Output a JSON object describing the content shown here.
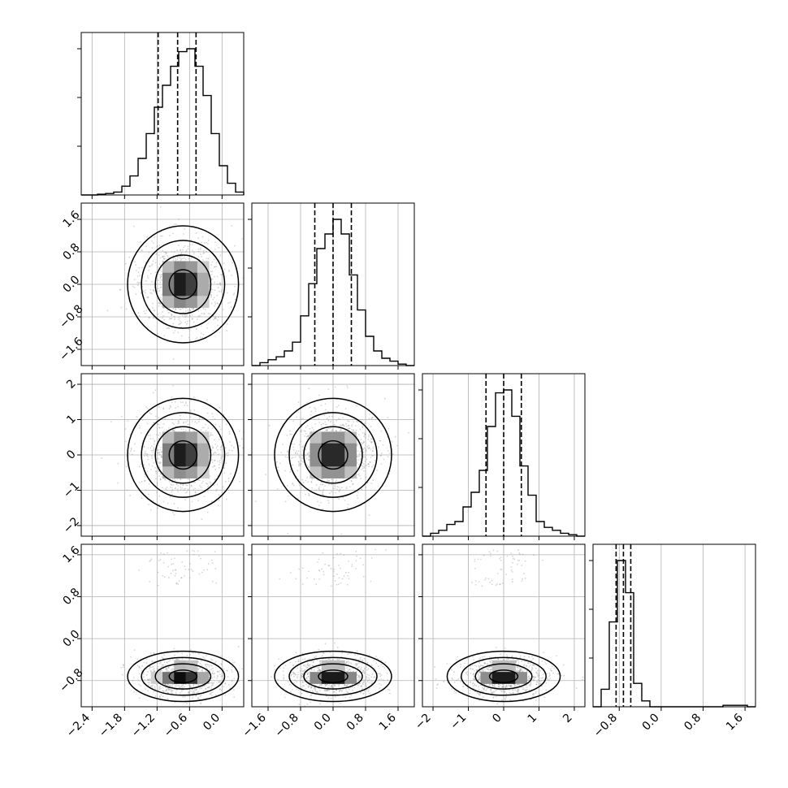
{
  "chart_data": {
    "type": "corner",
    "grid": true,
    "parameters": [
      {
        "range": [
          -2.6,
          0.4
        ],
        "ticks": [
          -2.4,
          -1.8,
          -1.2,
          -0.6,
          0.0
        ],
        "tick_labels": [
          "−2.4",
          "−1.8",
          "−1.2",
          "−0.6",
          "0.0"
        ],
        "quantiles": [
          -1.18,
          -0.82,
          -0.48
        ],
        "histogram_edges": [
          -2.6,
          -2.45,
          -2.3,
          -2.15,
          -2.0,
          -1.85,
          -1.7,
          -1.55,
          -1.4,
          -1.25,
          -1.1,
          -0.95,
          -0.8,
          -0.65,
          -0.5,
          -0.35,
          -0.2,
          -0.05,
          0.1,
          0.25,
          0.4
        ],
        "histogram_heights": [
          0.0,
          0.0,
          0.005,
          0.01,
          0.02,
          0.06,
          0.13,
          0.25,
          0.42,
          0.6,
          0.75,
          0.88,
          0.98,
          1.0,
          0.88,
          0.68,
          0.42,
          0.2,
          0.08,
          0.02
        ],
        "mean": -0.72,
        "sigma": 0.32
      },
      {
        "range": [
          -2.0,
          2.0
        ],
        "ticks": [
          -1.6,
          -0.8,
          0.0,
          0.8,
          1.6
        ],
        "tick_labels": [
          "−1.6",
          "−0.8",
          "0.0",
          "0.8",
          "1.6"
        ],
        "quantiles": [
          -0.45,
          0.0,
          0.45
        ],
        "histogram_edges": [
          -2.0,
          -1.8,
          -1.6,
          -1.4,
          -1.2,
          -1.0,
          -0.8,
          -0.6,
          -0.4,
          -0.2,
          0.0,
          0.2,
          0.4,
          0.6,
          0.8,
          1.0,
          1.2,
          1.4,
          1.6,
          1.8,
          2.0
        ],
        "histogram_heights": [
          0.0,
          0.02,
          0.04,
          0.06,
          0.1,
          0.16,
          0.34,
          0.56,
          0.8,
          0.9,
          1.0,
          0.9,
          0.62,
          0.38,
          0.2,
          0.1,
          0.05,
          0.03,
          0.01,
          0.0
        ],
        "mean": 0.0,
        "sigma": 0.45
      },
      {
        "range": [
          -2.3,
          2.3
        ],
        "ticks": [
          -2,
          -1,
          0,
          1,
          2
        ],
        "tick_labels": [
          "−2",
          "−1",
          "0",
          "1",
          "2"
        ],
        "quantiles": [
          -0.5,
          0.0,
          0.5
        ],
        "histogram_edges": [
          -2.3,
          -2.07,
          -1.84,
          -1.61,
          -1.38,
          -1.15,
          -0.92,
          -0.69,
          -0.46,
          -0.23,
          0.0,
          0.23,
          0.46,
          0.69,
          0.92,
          1.15,
          1.38,
          1.61,
          1.84,
          2.07,
          2.3
        ],
        "histogram_heights": [
          0.0,
          0.02,
          0.04,
          0.08,
          0.1,
          0.2,
          0.3,
          0.45,
          0.75,
          0.98,
          1.0,
          0.82,
          0.48,
          0.28,
          0.1,
          0.06,
          0.04,
          0.02,
          0.01,
          0.0
        ],
        "mean": 0.0,
        "sigma": 0.5
      },
      {
        "range": [
          -1.3,
          1.8
        ],
        "ticks": [
          -0.8,
          0.0,
          0.8,
          1.6
        ],
        "tick_labels": [
          "−0.8",
          "0.0",
          "0.8",
          "1.6"
        ],
        "quantiles": [
          -0.86,
          -0.72,
          -0.58
        ],
        "histogram_edges": [
          -1.3,
          -1.145,
          -0.99,
          -0.835,
          -0.68,
          -0.525,
          -0.37,
          -0.215,
          -0.06,
          0.095,
          0.25,
          0.405,
          0.56,
          0.715,
          0.87,
          1.025,
          1.18,
          1.335,
          1.49,
          1.645,
          1.8
        ],
        "histogram_heights": [
          0.0,
          0.12,
          0.58,
          1.0,
          0.78,
          0.16,
          0.04,
          0.0,
          0.0,
          0.0,
          0.0,
          0.0,
          0.0,
          0.0,
          0.0,
          0.0,
          0.01,
          0.01,
          0.01,
          0.0
        ],
        "mean": -0.72,
        "sigma": 0.15
      }
    ],
    "contour_levels_sigma": [
      0.5,
      1.0,
      1.5,
      2.0
    ],
    "sample_count_per_panel": 900,
    "density_bins": 20
  }
}
